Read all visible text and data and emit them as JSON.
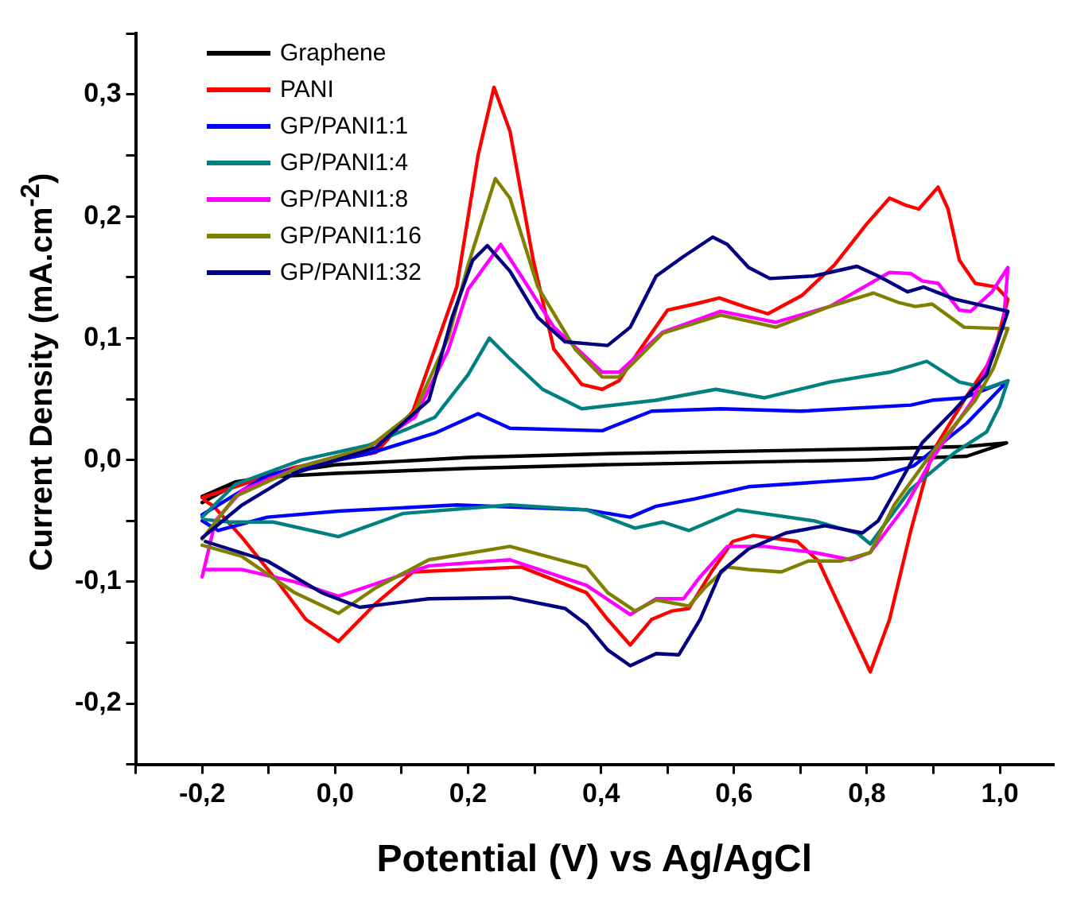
{
  "chart_data": {
    "type": "line",
    "xlabel": "Potential (V) vs Ag/AgCl",
    "ylabel": "Current Density (mA.cm$^{-2}$)",
    "xlim": [
      -0.3,
      1.08
    ],
    "ylim": [
      -0.25,
      0.35
    ],
    "xticks": [
      {
        "value": -0.3,
        "label": null
      },
      {
        "value": -0.2,
        "label": "-0,2"
      },
      {
        "value": -0.1,
        "label": null
      },
      {
        "value": 0,
        "label": "0,0"
      },
      {
        "value": 0.1,
        "label": null
      },
      {
        "value": 0.2,
        "label": "0,2"
      },
      {
        "value": 0.3,
        "label": null
      },
      {
        "value": 0.4,
        "label": "0,4"
      },
      {
        "value": 0.5,
        "label": null
      },
      {
        "value": 0.6,
        "label": "0,6"
      },
      {
        "value": 0.7,
        "label": null
      },
      {
        "value": 0.8,
        "label": "0,8"
      },
      {
        "value": 0.9,
        "label": null
      },
      {
        "value": 1.0,
        "label": "1,0"
      }
    ],
    "yticks": [
      {
        "value": -0.25,
        "label": null
      },
      {
        "value": -0.2,
        "label": "-0,2"
      },
      {
        "value": -0.15,
        "label": null
      },
      {
        "value": -0.1,
        "label": "-0,1"
      },
      {
        "value": -0.05,
        "label": null
      },
      {
        "value": 0,
        "label": "0,0"
      },
      {
        "value": 0.05,
        "label": null
      },
      {
        "value": 0.1,
        "label": "0,1"
      },
      {
        "value": 0.15,
        "label": null
      },
      {
        "value": 0.2,
        "label": "0,2"
      },
      {
        "value": 0.25,
        "label": null
      },
      {
        "value": 0.3,
        "label": "0,3"
      },
      {
        "value": 0.35,
        "label": null
      }
    ],
    "grid": false,
    "legend": "top left",
    "marker": "none",
    "line_style": "solid",
    "series": [
      {
        "name": "Graphene",
        "color": "#000000",
        "x": [
          -0.2,
          -0.15,
          -0.1,
          0,
          0.2,
          0.4,
          0.6,
          0.8,
          0.95,
          1.01,
          0.95,
          0.8,
          0.6,
          0.4,
          0.2,
          0,
          -0.1,
          -0.15,
          -0.2
        ],
        "values": [
          -0.035,
          -0.02,
          -0.012,
          -0.004,
          0.002,
          0.005,
          0.007,
          0.009,
          0.011,
          0.014,
          0.003,
          0.0,
          -0.002,
          -0.004,
          -0.007,
          -0.011,
          -0.014,
          -0.018,
          -0.03
        ]
      },
      {
        "name": "PANI",
        "color": "#ff0000",
        "x": [
          -0.2,
          -0.061,
          0.061,
          0.117,
          0.183,
          0.215,
          0.239,
          0.263,
          0.298,
          0.329,
          0.371,
          0.402,
          0.427,
          0.459,
          0.5,
          0.541,
          0.578,
          0.615,
          0.651,
          0.702,
          0.751,
          0.8,
          0.834,
          0.859,
          0.878,
          0.907,
          0.922,
          0.939,
          0.963,
          0.995,
          1.012,
          0.99,
          0.946,
          0.898,
          0.866,
          0.834,
          0.805,
          0.768,
          0.727,
          0.695,
          0.629,
          0.598,
          0.566,
          0.532,
          0.507,
          0.476,
          0.444,
          0.41,
          0.378,
          0.28,
          0.117,
          0.061,
          0.005,
          -0.044,
          -0.085,
          -0.141,
          -0.183,
          -0.197
        ],
        "values": [
          -0.031,
          -0.006,
          0.006,
          0.04,
          0.142,
          0.25,
          0.306,
          0.27,
          0.164,
          0.091,
          0.062,
          0.058,
          0.065,
          0.091,
          0.123,
          0.128,
          0.133,
          0.126,
          0.12,
          0.135,
          0.16,
          0.194,
          0.215,
          0.209,
          0.206,
          0.224,
          0.206,
          0.164,
          0.145,
          0.142,
          0.132,
          0.085,
          0.049,
          0.006,
          -0.058,
          -0.131,
          -0.174,
          -0.131,
          -0.083,
          -0.067,
          -0.062,
          -0.067,
          -0.092,
          -0.122,
          -0.124,
          -0.131,
          -0.152,
          -0.131,
          -0.109,
          -0.088,
          -0.092,
          -0.118,
          -0.149,
          -0.131,
          -0.101,
          -0.063,
          -0.038,
          -0.033
        ]
      },
      {
        "name": "GP/PANI1:1",
        "color": "#0000ff",
        "x": [
          -0.2,
          -0.1,
          0.05,
          0.15,
          0.215,
          0.263,
          0.402,
          0.476,
          0.58,
          0.7,
          0.866,
          0.898,
          0.946,
          1.012,
          0.95,
          0.87,
          0.81,
          0.732,
          0.622,
          0.541,
          0.483,
          0.444,
          0.378,
          0.183,
          0.005,
          -0.102,
          -0.176,
          -0.2
        ],
        "values": [
          -0.045,
          -0.012,
          0.005,
          0.022,
          0.038,
          0.026,
          0.024,
          0.04,
          0.042,
          0.04,
          0.045,
          0.049,
          0.051,
          0.065,
          0.03,
          -0.005,
          -0.015,
          -0.018,
          -0.022,
          -0.032,
          -0.038,
          -0.047,
          -0.041,
          -0.037,
          -0.042,
          -0.047,
          -0.058,
          -0.05
        ]
      },
      {
        "name": "GP/PANI1:4",
        "color": "#008080",
        "x": [
          -0.2,
          -0.15,
          -0.05,
          0.05,
          0.15,
          0.2,
          0.232,
          0.263,
          0.312,
          0.371,
          0.483,
          0.573,
          0.646,
          0.744,
          0.834,
          0.89,
          0.939,
          0.98,
          1.012,
          1.0,
          0.98,
          0.932,
          0.866,
          0.805,
          0.785,
          0.72,
          0.605,
          0.532,
          0.493,
          0.451,
          0.378,
          0.263,
          0.102,
          0.005,
          -0.093,
          -0.159,
          -0.196
        ],
        "values": [
          -0.047,
          -0.02,
          0.0,
          0.012,
          0.035,
          0.07,
          0.1,
          0.083,
          0.058,
          0.042,
          0.049,
          0.058,
          0.051,
          0.064,
          0.072,
          0.081,
          0.064,
          0.059,
          0.065,
          0.045,
          0.023,
          0.006,
          -0.024,
          -0.069,
          -0.06,
          -0.05,
          -0.041,
          -0.058,
          -0.051,
          -0.056,
          -0.041,
          -0.037,
          -0.044,
          -0.063,
          -0.051,
          -0.051,
          -0.049
        ]
      },
      {
        "name": "GP/PANI1:8",
        "color": "#ff00ff",
        "x": [
          -0.2,
          -0.18,
          -0.14,
          -0.05,
          0.05,
          0.12,
          0.17,
          0.2,
          0.249,
          0.28,
          0.329,
          0.402,
          0.427,
          0.493,
          0.58,
          0.663,
          0.744,
          0.834,
          0.866,
          0.883,
          0.907,
          0.939,
          0.956,
          0.988,
          1.012,
          1.005,
          0.959,
          0.898,
          0.859,
          0.805,
          0.776,
          0.72,
          0.646,
          0.59,
          0.549,
          0.524,
          0.483,
          0.444,
          0.378,
          0.263,
          0.141,
          0.005,
          -0.061,
          -0.141,
          -0.195
        ],
        "values": [
          -0.096,
          -0.05,
          -0.025,
          -0.005,
          0.01,
          0.035,
          0.09,
          0.14,
          0.177,
          0.151,
          0.109,
          0.072,
          0.072,
          0.105,
          0.122,
          0.113,
          0.126,
          0.154,
          0.153,
          0.147,
          0.145,
          0.123,
          0.122,
          0.138,
          0.158,
          0.11,
          0.049,
          0.001,
          -0.037,
          -0.076,
          -0.082,
          -0.076,
          -0.071,
          -0.071,
          -0.096,
          -0.114,
          -0.114,
          -0.127,
          -0.103,
          -0.082,
          -0.087,
          -0.112,
          -0.1,
          -0.09,
          -0.09
        ]
      },
      {
        "name": "GP/PANI1:16",
        "color": "#808000",
        "x": [
          -0.2,
          -0.15,
          -0.05,
          0.05,
          0.12,
          0.17,
          0.2,
          0.241,
          0.263,
          0.305,
          0.361,
          0.402,
          0.427,
          0.493,
          0.58,
          0.663,
          0.744,
          0.81,
          0.849,
          0.873,
          0.898,
          0.946,
          0.995,
          1.012,
          0.99,
          0.963,
          0.898,
          0.841,
          0.805,
          0.761,
          0.712,
          0.671,
          0.622,
          0.59,
          0.556,
          0.532,
          0.483,
          0.451,
          0.41,
          0.378,
          0.263,
          0.141,
          0.061,
          0.005,
          -0.061,
          -0.141,
          -0.2
        ],
        "values": [
          -0.065,
          -0.03,
          -0.005,
          0.01,
          0.04,
          0.1,
          0.16,
          0.231,
          0.215,
          0.142,
          0.091,
          0.068,
          0.068,
          0.104,
          0.119,
          0.109,
          0.126,
          0.137,
          0.129,
          0.126,
          0.128,
          0.109,
          0.108,
          0.108,
          0.075,
          0.049,
          0.006,
          -0.037,
          -0.076,
          -0.083,
          -0.083,
          -0.092,
          -0.09,
          -0.088,
          -0.105,
          -0.12,
          -0.115,
          -0.124,
          -0.109,
          -0.088,
          -0.071,
          -0.082,
          -0.105,
          -0.126,
          -0.109,
          -0.079,
          -0.07
        ]
      },
      {
        "name": "GP/PANI1:32",
        "color": "#000080",
        "x": [
          -0.2,
          -0.14,
          -0.061,
          0.061,
          0.141,
          0.176,
          0.207,
          0.229,
          0.263,
          0.305,
          0.346,
          0.41,
          0.444,
          0.483,
          0.524,
          0.568,
          0.59,
          0.622,
          0.654,
          0.72,
          0.785,
          0.817,
          0.861,
          0.885,
          0.932,
          1.012,
          0.98,
          0.93,
          0.883,
          0.849,
          0.817,
          0.793,
          0.737,
          0.678,
          0.622,
          0.58,
          0.549,
          0.517,
          0.483,
          0.444,
          0.41,
          0.378,
          0.346,
          0.263,
          0.141,
          0.037,
          -0.02,
          -0.102,
          -0.195
        ],
        "values": [
          -0.064,
          -0.037,
          -0.011,
          0.01,
          0.049,
          0.117,
          0.164,
          0.176,
          0.155,
          0.117,
          0.097,
          0.094,
          0.109,
          0.151,
          0.167,
          0.183,
          0.177,
          0.158,
          0.149,
          0.151,
          0.159,
          0.151,
          0.138,
          0.142,
          0.132,
          0.122,
          0.07,
          0.04,
          0.014,
          -0.019,
          -0.05,
          -0.06,
          -0.054,
          -0.06,
          -0.073,
          -0.092,
          -0.131,
          -0.16,
          -0.159,
          -0.169,
          -0.156,
          -0.135,
          -0.122,
          -0.113,
          -0.114,
          -0.121,
          -0.109,
          -0.083,
          -0.067
        ]
      }
    ]
  }
}
